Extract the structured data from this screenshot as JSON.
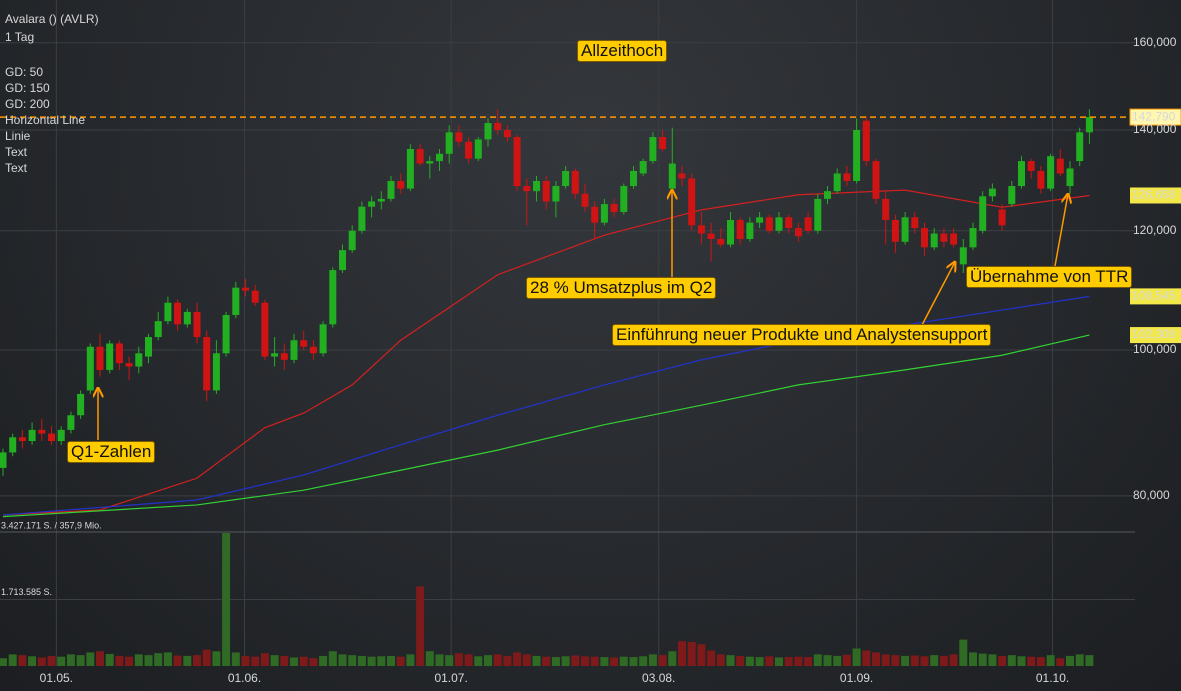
{
  "chart_data": {
    "type": "candlestick",
    "title": "Avalara () (AVLR)",
    "subtitle": "1 Tag",
    "log_scale": true,
    "grid": true,
    "ylim": [
      75700,
      170800
    ],
    "yticks": [
      {
        "value": 80000,
        "label": "80,000"
      },
      {
        "value": 100000,
        "label": "100,000"
      },
      {
        "value": 120000,
        "label": "120,000"
      },
      {
        "value": 140000,
        "label": "140,000"
      },
      {
        "value": 160000,
        "label": "160,000"
      }
    ],
    "xticks": [
      {
        "value": 5.5,
        "label": "01.05."
      },
      {
        "value": 24.9,
        "label": "01.06."
      },
      {
        "value": 46.2,
        "label": "01.07."
      },
      {
        "value": 67.6,
        "label": "03.08."
      },
      {
        "value": 88,
        "label": "01.09."
      },
      {
        "value": 108.2,
        "label": "01.10."
      }
    ],
    "up_color": "#22b022",
    "down_color": "#d01414",
    "volume_up_color": "#2f6b24",
    "volume_down_color": "#7e1a1a",
    "candles": [
      [
        83500,
        86000,
        82500,
        85500
      ],
      [
        85500,
        88000,
        85000,
        87500
      ],
      [
        87500,
        88500,
        86000,
        87000
      ],
      [
        87000,
        89500,
        86500,
        88500
      ],
      [
        88500,
        90000,
        87000,
        88000
      ],
      [
        88000,
        89000,
        86500,
        87000
      ],
      [
        87000,
        89000,
        86500,
        88500
      ],
      [
        88500,
        91000,
        88000,
        90500
      ],
      [
        90500,
        94000,
        90000,
        93500
      ],
      [
        94000,
        101000,
        93500,
        100500
      ],
      [
        100500,
        102500,
        96000,
        97000
      ],
      [
        97000,
        101500,
        96500,
        101000
      ],
      [
        101000,
        101500,
        97000,
        98000
      ],
      [
        98000,
        99000,
        95500,
        97500
      ],
      [
        97500,
        100500,
        96500,
        99500
      ],
      [
        99000,
        102500,
        98000,
        102000
      ],
      [
        102000,
        106000,
        101500,
        104500
      ],
      [
        104500,
        108500,
        104000,
        107500
      ],
      [
        107500,
        108000,
        103000,
        104000
      ],
      [
        104000,
        106500,
        103500,
        106000
      ],
      [
        106000,
        107500,
        101000,
        102000
      ],
      [
        102000,
        103000,
        92500,
        94000
      ],
      [
        94000,
        101500,
        93500,
        99500
      ],
      [
        99500,
        106000,
        99000,
        105500
      ],
      [
        105500,
        111000,
        105000,
        110000
      ],
      [
        110000,
        111500,
        108500,
        109500
      ],
      [
        109500,
        110500,
        107000,
        107500
      ],
      [
        107500,
        108000,
        98500,
        99000
      ],
      [
        99000,
        102000,
        97500,
        99500
      ],
      [
        99500,
        101000,
        97000,
        98500
      ],
      [
        98500,
        102500,
        98000,
        101500
      ],
      [
        101500,
        103000,
        100000,
        100500
      ],
      [
        100500,
        101500,
        98500,
        99500
      ],
      [
        99500,
        104500,
        99000,
        104000
      ],
      [
        104000,
        113500,
        103500,
        113000
      ],
      [
        113000,
        117500,
        112500,
        116500
      ],
      [
        116500,
        121000,
        116000,
        120000
      ],
      [
        120000,
        125500,
        119500,
        124500
      ],
      [
        124500,
        126500,
        122500,
        125500
      ],
      [
        125500,
        127500,
        124000,
        126000
      ],
      [
        126000,
        130500,
        125500,
        129500
      ],
      [
        129500,
        131000,
        127000,
        128000
      ],
      [
        128000,
        137000,
        127500,
        136000
      ],
      [
        136000,
        137000,
        132500,
        133000
      ],
      [
        133000,
        134500,
        130000,
        133500
      ],
      [
        133500,
        136000,
        131500,
        135000
      ],
      [
        135000,
        141000,
        133000,
        139500
      ],
      [
        139500,
        141000,
        136500,
        137500
      ],
      [
        137500,
        138500,
        133000,
        134000
      ],
      [
        134000,
        138500,
        133500,
        138000
      ],
      [
        138000,
        142500,
        136500,
        141500
      ],
      [
        141500,
        144500,
        139000,
        140000
      ],
      [
        140000,
        141000,
        137500,
        138500
      ],
      [
        138500,
        139000,
        127500,
        128500
      ],
      [
        128500,
        130000,
        121000,
        127500
      ],
      [
        127500,
        130500,
        125500,
        129500
      ],
      [
        129500,
        130500,
        124000,
        125500
      ],
      [
        125500,
        129500,
        122500,
        128500
      ],
      [
        128500,
        132500,
        128000,
        131500
      ],
      [
        131500,
        132000,
        126000,
        127000
      ],
      [
        127000,
        129000,
        123500,
        124500
      ],
      [
        124500,
        125500,
        118500,
        121500
      ],
      [
        121500,
        126000,
        121000,
        125000
      ],
      [
        125000,
        126000,
        122500,
        123500
      ],
      [
        123500,
        129000,
        123000,
        128500
      ],
      [
        128500,
        132500,
        128000,
        131500
      ],
      [
        131000,
        134000,
        130500,
        133500
      ],
      [
        133500,
        139500,
        133000,
        138500
      ],
      [
        138500,
        140000,
        135500,
        136000
      ],
      [
        128000,
        140500,
        127500,
        133000
      ],
      [
        131000,
        132500,
        128500,
        130000
      ],
      [
        130000,
        131000,
        120000,
        121000
      ],
      [
        121000,
        123500,
        117500,
        119500
      ],
      [
        119500,
        121500,
        114500,
        118500
      ],
      [
        118500,
        120500,
        117000,
        117500
      ],
      [
        117500,
        123500,
        117000,
        122000
      ],
      [
        122000,
        122500,
        117500,
        118500
      ],
      [
        118500,
        122500,
        118000,
        121500
      ],
      [
        121500,
        123500,
        120500,
        122500
      ],
      [
        122500,
        123000,
        119500,
        120000
      ],
      [
        120000,
        123500,
        119500,
        122500
      ],
      [
        122500,
        123000,
        119500,
        120500
      ],
      [
        120500,
        121500,
        118000,
        119000
      ],
      [
        122500,
        123500,
        119500,
        120000
      ],
      [
        120000,
        127000,
        119500,
        126000
      ],
      [
        126000,
        128500,
        125000,
        127500
      ],
      [
        127500,
        132000,
        127000,
        131000
      ],
      [
        131000,
        132500,
        128500,
        129500
      ],
      [
        129500,
        142500,
        129000,
        140000
      ],
      [
        142000,
        143000,
        132500,
        133500
      ],
      [
        133500,
        134000,
        125000,
        126000
      ],
      [
        126000,
        127500,
        117500,
        122000
      ],
      [
        122000,
        123000,
        116000,
        118000
      ],
      [
        118000,
        123500,
        117500,
        122500
      ],
      [
        122500,
        123500,
        119500,
        120500
      ],
      [
        120500,
        121500,
        115500,
        117000
      ],
      [
        117000,
        120500,
        116500,
        119500
      ],
      [
        119500,
        120500,
        117000,
        118000
      ],
      [
        119500,
        120500,
        117000,
        117500
      ],
      [
        114000,
        118500,
        112500,
        117000
      ],
      [
        117000,
        121500,
        116500,
        120500
      ],
      [
        120000,
        127500,
        119500,
        126500
      ],
      [
        126500,
        129000,
        125500,
        128000
      ],
      [
        124000,
        125000,
        120000,
        121000
      ],
      [
        125000,
        129500,
        124500,
        128500
      ],
      [
        128500,
        134500,
        128000,
        133500
      ],
      [
        133500,
        134000,
        130000,
        131500
      ],
      [
        131500,
        132500,
        127000,
        128000
      ],
      [
        128000,
        135000,
        127500,
        134500
      ],
      [
        134000,
        136000,
        130500,
        131000
      ],
      [
        128500,
        133500,
        127000,
        132000
      ],
      [
        133500,
        140500,
        132500,
        139500
      ],
      [
        139500,
        144500,
        137000,
        142790
      ]
    ],
    "volume": [
      200000,
      300000,
      280000,
      250000,
      220000,
      260000,
      240000,
      300000,
      280000,
      350000,
      380000,
      310000,
      260000,
      240000,
      300000,
      280000,
      330000,
      350000,
      270000,
      260000,
      280000,
      420000,
      380000,
      3427171,
      350000,
      260000,
      240000,
      330000,
      280000,
      260000,
      220000,
      240000,
      200000,
      260000,
      380000,
      300000,
      280000,
      260000,
      240000,
      250000,
      260000,
      240000,
      300000,
      2050000,
      380000,
      300000,
      280000,
      330000,
      300000,
      250000,
      280000,
      300000,
      260000,
      350000,
      300000,
      260000,
      240000,
      230000,
      250000,
      270000,
      250000,
      240000,
      230000,
      220000,
      240000,
      230000,
      250000,
      300000,
      280000,
      380000,
      640000,
      620000,
      560000,
      400000,
      300000,
      280000,
      260000,
      240000,
      230000,
      250000,
      220000,
      230000,
      240000,
      230000,
      300000,
      280000,
      260000,
      290000,
      450000,
      400000,
      350000,
      300000,
      280000,
      260000,
      270000,
      250000,
      280000,
      260000,
      300000,
      680000,
      350000,
      320000,
      300000,
      260000,
      280000,
      250000,
      240000,
      230000,
      280000,
      200000,
      260000,
      300000,
      280000
    ],
    "volume_ylim": [
      0,
      3427171
    ],
    "volume_ticks": [
      {
        "value": 3427171,
        "label": "3.427.171 S. / 357,9 Mio."
      },
      {
        "value": 1713585,
        "label": "1.713.585 S."
      }
    ],
    "series": [
      {
        "name": "GD: 50",
        "color": "#d42020",
        "x": [
          0,
          10,
          20,
          27,
          31,
          36,
          41,
          51,
          62,
          72,
          82,
          93,
          103,
          112
        ],
        "values": [
          77700,
          78300,
          82200,
          88800,
          90800,
          94800,
          101500,
          112200,
          119200,
          123900,
          126800,
          127700,
          124400,
          126658
        ],
        "last_label": "126,658"
      },
      {
        "name": "GD: 150",
        "color": "#2233cc",
        "x": [
          0,
          20,
          31,
          41,
          51,
          62,
          72,
          82,
          93,
          103,
          112
        ],
        "values": [
          77700,
          79500,
          82600,
          86500,
          90500,
          94800,
          98500,
          101500,
          103900,
          106300,
          108545
        ],
        "last_label": "108,545"
      },
      {
        "name": "GD: 200",
        "color": "#33d133",
        "x": [
          0,
          20,
          31,
          41,
          51,
          62,
          72,
          82,
          93,
          103,
          112
        ],
        "values": [
          77500,
          78900,
          80700,
          83200,
          85800,
          89200,
          91900,
          94800,
          97000,
          99200,
          102308
        ],
        "last_label": "102,308"
      }
    ],
    "horizontal_line": {
      "name": "Horizontal Line",
      "value": 142790,
      "label": "142,790",
      "color": "#ff9900"
    },
    "drawings": [
      "Linie",
      "Text",
      "Text"
    ],
    "annotations": [
      "Allzeithoch",
      "Q1-Zahlen",
      "28 % Umsatzplus im Q2",
      "Einführung neuer Produkte und Analystensupport",
      "Übernahme von TTR"
    ]
  }
}
